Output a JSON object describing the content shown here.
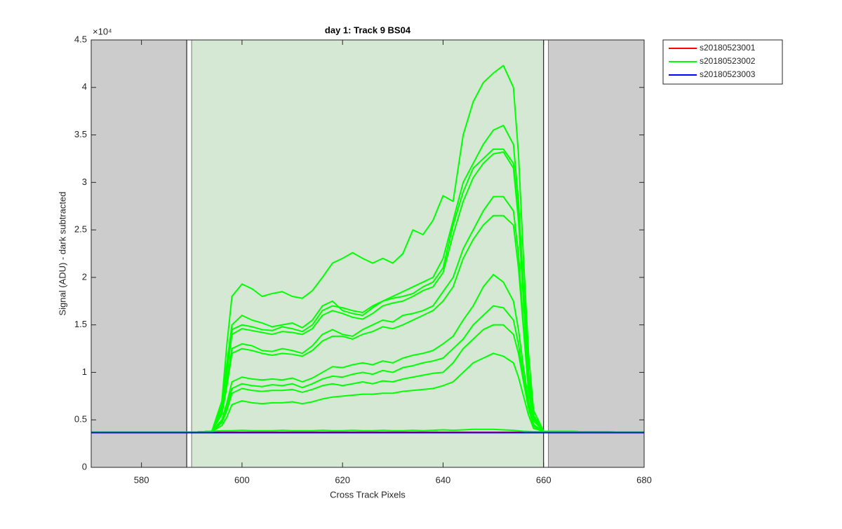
{
  "chart_data": {
    "type": "line",
    "title": "day 1: Track 9  BS04",
    "xlabel": "Cross Track Pixels",
    "ylabel": "Signal (ADU) - dark subtracted",
    "y_multiplier": "×10⁴",
    "xlim": [
      570,
      680
    ],
    "xticks": [
      580,
      600,
      620,
      640,
      660,
      680
    ],
    "ylim": [
      0,
      45000
    ],
    "yticks": [
      0,
      {
        "value": 5000,
        "label": "0.5"
      },
      {
        "value": 10000,
        "label": "1"
      },
      {
        "value": 15000,
        "label": "1.5"
      },
      {
        "value": 20000,
        "label": "2"
      },
      {
        "value": 25000,
        "label": "2.5"
      },
      {
        "value": 30000,
        "label": "3"
      },
      {
        "value": 35000,
        "label": "3.5"
      },
      {
        "value": 40000,
        "label": "4"
      },
      {
        "value": 45000,
        "label": "4.5"
      }
    ],
    "grid": false,
    "legend": "outside-top-right",
    "regions": [
      {
        "x": [
          570,
          589
        ],
        "color": "#cccccc"
      },
      {
        "x": [
          589,
          590
        ],
        "color": "#ffffff",
        "edge": "#000000"
      },
      {
        "x": [
          590,
          660
        ],
        "color": "#d5e8d4"
      },
      {
        "x": [
          660,
          661
        ],
        "color": "#ffffff",
        "edge": "#000000"
      },
      {
        "x": [
          661,
          680
        ],
        "color": "#cccccc"
      }
    ],
    "x": [
      570,
      590,
      594,
      596,
      597,
      598,
      600,
      602,
      604,
      606,
      608,
      610,
      612,
      614,
      616,
      618,
      620,
      622,
      624,
      626,
      628,
      630,
      632,
      634,
      636,
      638,
      640,
      642,
      644,
      646,
      648,
      650,
      652,
      654,
      655,
      656,
      657,
      658,
      660,
      680
    ],
    "series": [
      {
        "name": "s20180523001",
        "color": "#ff0000",
        "values": [
          [
            3700,
            3700,
            3700,
            3700,
            3700,
            3700,
            3700,
            3700,
            3700,
            3700,
            3700,
            3700,
            3700,
            3700,
            3700,
            3700,
            3700,
            3700,
            3700,
            3700,
            3700,
            3700,
            3700,
            3700,
            3700,
            3700,
            3700,
            3700,
            3700,
            3700,
            3700,
            3700,
            3700,
            3700,
            3700,
            3700,
            3700,
            3700,
            3700,
            3700
          ]
        ]
      },
      {
        "name": "s20180523002",
        "color": "#00ff00",
        "values": [
          [
            3700,
            3700,
            3800,
            7000,
            13000,
            18000,
            19300,
            18800,
            18000,
            18300,
            18500,
            18000,
            17800,
            18600,
            20000,
            21500,
            22000,
            22600,
            22000,
            21500,
            22000,
            21500,
            22500,
            25000,
            24500,
            26000,
            28600,
            28000,
            35000,
            38500,
            40500,
            41500,
            42300,
            40000,
            33000,
            22000,
            12000,
            6000,
            3800,
            3700
          ],
          [
            3700,
            3700,
            3800,
            6500,
            11000,
            15000,
            16000,
            15500,
            15200,
            14800,
            15000,
            15200,
            14700,
            15500,
            17000,
            17500,
            16500,
            16200,
            16000,
            16800,
            17500,
            18000,
            18500,
            19000,
            19500,
            20000,
            22000,
            26000,
            30000,
            32000,
            34000,
            35500,
            36000,
            34000,
            28000,
            19000,
            10000,
            5500,
            3800,
            3700
          ],
          [
            3700,
            3700,
            3800,
            6300,
            10500,
            14500,
            15000,
            14800,
            14500,
            14400,
            14800,
            14600,
            14300,
            15000,
            16500,
            17000,
            16800,
            16500,
            16300,
            17000,
            17500,
            17800,
            18000,
            18300,
            19000,
            19500,
            21000,
            25500,
            29000,
            31500,
            32500,
            33500,
            33500,
            32000,
            26500,
            18000,
            9500,
            5300,
            3800,
            3700
          ],
          [
            3700,
            3700,
            3800,
            6200,
            10000,
            14000,
            14600,
            14400,
            14200,
            14000,
            14300,
            14200,
            14000,
            14600,
            16000,
            16500,
            16200,
            15800,
            15600,
            16200,
            17000,
            17300,
            17500,
            18000,
            18600,
            19000,
            20500,
            24500,
            28000,
            30500,
            32000,
            33000,
            33200,
            31500,
            26000,
            17500,
            9300,
            5200,
            3800,
            3700
          ],
          [
            3700,
            3700,
            3800,
            5800,
            9000,
            12500,
            13000,
            12800,
            12300,
            12200,
            12500,
            12300,
            12000,
            12800,
            14000,
            14500,
            14000,
            13800,
            14500,
            15000,
            15500,
            15300,
            16000,
            16200,
            16500,
            17000,
            18500,
            20000,
            23000,
            25000,
            27000,
            28500,
            28500,
            27000,
            22500,
            15000,
            8500,
            5000,
            3800,
            3700
          ],
          [
            3700,
            3700,
            3800,
            5600,
            8600,
            12000,
            12500,
            12300,
            12000,
            11800,
            12000,
            11900,
            11700,
            12300,
            13300,
            13800,
            13800,
            13500,
            14000,
            14300,
            14800,
            14600,
            15000,
            15500,
            16000,
            16500,
            17500,
            19000,
            22000,
            24000,
            25500,
            26500,
            26500,
            25500,
            21000,
            14500,
            8000,
            4900,
            3800,
            3700
          ],
          [
            3700,
            3700,
            3800,
            5000,
            6800,
            9000,
            9500,
            9300,
            9200,
            9300,
            9200,
            9400,
            9000,
            9400,
            10000,
            10600,
            10500,
            10800,
            11000,
            10800,
            11200,
            11000,
            11500,
            11800,
            12000,
            12300,
            13000,
            13800,
            15500,
            17000,
            19000,
            20300,
            19500,
            17500,
            14500,
            10500,
            7000,
            4500,
            3800,
            3700
          ],
          [
            3700,
            3700,
            3800,
            4900,
            6400,
            8300,
            8800,
            8600,
            8500,
            8700,
            8600,
            8800,
            8400,
            8800,
            9300,
            9600,
            9500,
            9800,
            10000,
            9800,
            10200,
            10000,
            10500,
            10700,
            11000,
            11200,
            11500,
            12500,
            13500,
            15000,
            16000,
            17000,
            16800,
            15500,
            13000,
            9500,
            6500,
            4400,
            3800,
            3700
          ],
          [
            3700,
            3700,
            3800,
            4700,
            6000,
            7800,
            8300,
            8100,
            8000,
            8100,
            8100,
            8200,
            7900,
            8200,
            8600,
            8800,
            8600,
            8800,
            9000,
            8800,
            9100,
            9000,
            9300,
            9500,
            9700,
            9900,
            10000,
            11000,
            12500,
            13500,
            14500,
            15000,
            15000,
            14000,
            12000,
            9000,
            6200,
            4300,
            3800,
            3700
          ],
          [
            3700,
            3700,
            3800,
            4400,
            5300,
            6600,
            7000,
            6800,
            6700,
            6800,
            6800,
            6900,
            6700,
            6900,
            7200,
            7400,
            7500,
            7600,
            7700,
            7700,
            7800,
            7800,
            8000,
            8100,
            8200,
            8300,
            8600,
            9000,
            10000,
            11000,
            11500,
            12000,
            11700,
            11000,
            9500,
            7500,
            5500,
            4100,
            3800,
            3700
          ],
          [
            3700,
            3700,
            3800,
            3850,
            3850,
            3850,
            3900,
            3850,
            3850,
            3850,
            3900,
            3850,
            3850,
            3850,
            3900,
            3850,
            3850,
            3900,
            3850,
            3850,
            3900,
            3850,
            3850,
            3900,
            3850,
            3900,
            3950,
            3900,
            3950,
            4000,
            4000,
            4000,
            3950,
            3900,
            3850,
            3800,
            3780,
            3750,
            3750,
            3700
          ]
        ]
      },
      {
        "name": "s20180523003",
        "color": "#0000ff",
        "values": [
          [
            3650,
            3650,
            3650,
            3650,
            3650,
            3650,
            3650,
            3650,
            3650,
            3650,
            3650,
            3650,
            3650,
            3650,
            3650,
            3650,
            3650,
            3650,
            3650,
            3650,
            3650,
            3650,
            3650,
            3650,
            3650,
            3650,
            3650,
            3650,
            3650,
            3650,
            3650,
            3650,
            3650,
            3650,
            3650,
            3650,
            3650,
            3650,
            3650,
            3650
          ]
        ]
      }
    ]
  }
}
